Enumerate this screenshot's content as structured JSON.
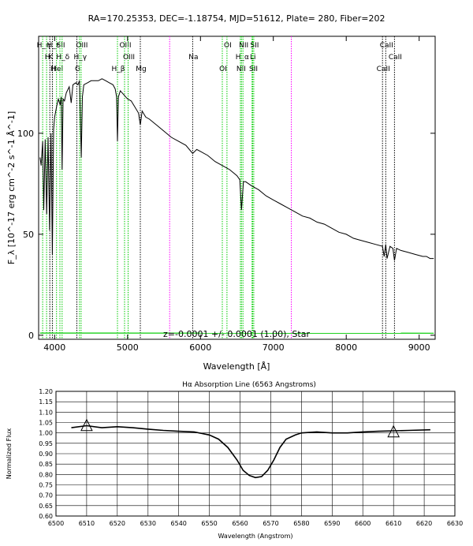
{
  "chart_data": [
    {
      "type": "line",
      "title": "RA=170.25353, DEC=-1.18754, MJD=51612, Plate= 280, Fiber=202",
      "xlabel": "Wavelength [Å]",
      "ylabel": "F_λ [10^-17 erg cm^-2 s^-1 Å^-1]",
      "xlim": [
        3780,
        9220
      ],
      "ylim": [
        -2,
        148
      ],
      "x_ticks": [
        4000,
        5000,
        6000,
        7000,
        8000,
        9000
      ],
      "x_tick_labels": [
        "4000",
        "5000",
        "6000",
        "7000",
        "8000",
        "9000"
      ],
      "y_ticks": [
        0,
        50,
        100
      ],
      "y_tick_labels": [
        "0",
        "50",
        "100"
      ],
      "annotation": "z=-0.0001 +/- 0.0001 (1.00), Star",
      "series": [
        {
          "color": "#000000",
          "x": [
            3800,
            3815,
            3835,
            3850,
            3870,
            3890,
            3910,
            3930,
            3950,
            3968,
            3985,
            4000,
            4025,
            4050,
            4075,
            4090,
            4102,
            4115,
            4135,
            4160,
            4200,
            4227,
            4250,
            4290,
            4320,
            4340,
            4350,
            4365,
            4380,
            4400,
            4450,
            4500,
            4550,
            4600,
            4650,
            4700,
            4750,
            4800,
            4830,
            4850,
            4861,
            4875,
            4900,
            4950,
            5000,
            5050,
            5100,
            5150,
            5175,
            5200,
            5250,
            5300,
            5400,
            5500,
            5600,
            5700,
            5800,
            5893,
            5950,
            6000,
            6100,
            6200,
            6300,
            6400,
            6500,
            6540,
            6563,
            6590,
            6620,
            6700,
            6800,
            6900,
            7000,
            7100,
            7200,
            7300,
            7400,
            7500,
            7600,
            7700,
            7800,
            7900,
            8000,
            8100,
            8200,
            8300,
            8400,
            8498,
            8520,
            8542,
            8560,
            8600,
            8640,
            8662,
            8690,
            8750,
            8850,
            8950,
            9050,
            9100,
            9150,
            9200
          ],
          "values": [
            88,
            84,
            96,
            62,
            97,
            60,
            98,
            52,
            100,
            40,
            102,
            108,
            113,
            117,
            114,
            118,
            82,
            117,
            116,
            120,
            123,
            115,
            124,
            125,
            124,
            126,
            112,
            88,
            118,
            124,
            125,
            126,
            126,
            126,
            127,
            126,
            125,
            124,
            122,
            118,
            96,
            118,
            121,
            119,
            117,
            116,
            113,
            110,
            104,
            111,
            108,
            107,
            104,
            101,
            98,
            96,
            94,
            90,
            92,
            91,
            89,
            86,
            84,
            82,
            79,
            77,
            62,
            76,
            76,
            74,
            72,
            69,
            67,
            65,
            63,
            61,
            59,
            58,
            56,
            55,
            53,
            51,
            50,
            48,
            47,
            46,
            45,
            44,
            39,
            45,
            38,
            44,
            43,
            37,
            43,
            42,
            41,
            40,
            39,
            39,
            38,
            38
          ]
        },
        {
          "color": "#00cc00",
          "x": [
            3800,
            9200
          ],
          "values": [
            1.1,
            1.0
          ]
        }
      ],
      "line_markers": [
        {
          "label": "H_ε",
          "x": 3970,
          "color": "#00cc00",
          "style": "dotted"
        },
        {
          "label": "K",
          "x": 3934,
          "color": "#000000",
          "style": "dotted"
        },
        {
          "label": "H",
          "x": 3968,
          "color": "#000000",
          "style": "dotted"
        },
        {
          "label": "H_η",
          "x": 3835,
          "color": "#00cc00",
          "style": "dotted"
        },
        {
          "label": "H",
          "x": 3889,
          "color": "#00cc00",
          "style": "dotted"
        },
        {
          "label": "HeI",
          "x": 4026,
          "color": "#00cc00",
          "style": "dotted"
        },
        {
          "label": "SII",
          "x": 4072,
          "color": "#00cc00",
          "style": "dotted"
        },
        {
          "label": "H_δ",
          "x": 4102,
          "color": "#00cc00",
          "style": "dotted"
        },
        {
          "label": "G",
          "x": 4305,
          "color": "#000000",
          "style": "dotted"
        },
        {
          "label": "OIII",
          "x": 4363,
          "color": "#00cc00",
          "style": "dotted"
        },
        {
          "label": "H_γ",
          "x": 4340,
          "color": "#00cc00",
          "style": "dotted"
        },
        {
          "label": "H_β",
          "x": 4861,
          "color": "#00cc00",
          "style": "dotted"
        },
        {
          "label": "OIII",
          "x": 4959,
          "color": "#00cc00",
          "style": "dotted"
        },
        {
          "label": "OIII",
          "x": 5007,
          "color": "#00cc00",
          "style": "dotted"
        },
        {
          "label": "Mg",
          "x": 5175,
          "color": "#000000",
          "style": "dotted"
        },
        {
          "label": "",
          "x": 5577,
          "color": "#ff00ff",
          "style": "dotted"
        },
        {
          "label": "Na",
          "x": 5893,
          "color": "#000000",
          "style": "dotted"
        },
        {
          "label": "OI",
          "x": 6300,
          "color": "#00cc00",
          "style": "dotted"
        },
        {
          "label": "OI",
          "x": 6364,
          "color": "#00cc00",
          "style": "dotted"
        },
        {
          "label": "H_α",
          "x": 6563,
          "color": "#00cc00",
          "style": "dotted"
        },
        {
          "label": "NII",
          "x": 6548,
          "color": "#00cc00",
          "style": "dotted"
        },
        {
          "label": "NII",
          "x": 6583,
          "color": "#00cc00",
          "style": "dotted"
        },
        {
          "label": "Li",
          "x": 6708,
          "color": "#00cc00",
          "style": "dotted"
        },
        {
          "label": "SII",
          "x": 6716,
          "color": "#00cc00",
          "style": "dotted"
        },
        {
          "label": "SII",
          "x": 6731,
          "color": "#00cc00",
          "style": "dotted"
        },
        {
          "label": "",
          "x": 7246,
          "color": "#ff00ff",
          "style": "dotted"
        },
        {
          "label": "CaII",
          "x": 8498,
          "color": "#000000",
          "style": "dotted"
        },
        {
          "label": "CaII",
          "x": 8542,
          "color": "#000000",
          "style": "dotted"
        },
        {
          "label": "CaII",
          "x": 8662,
          "color": "#000000",
          "style": "dotted"
        }
      ]
    },
    {
      "type": "line",
      "title": "Hα Absorption Line (6563 Angstroms)",
      "xlabel": "Wavelength (Angstrom)",
      "ylabel": "Normalized Flux",
      "xlim": [
        6500,
        6630
      ],
      "ylim": [
        0.6,
        1.2
      ],
      "grid": true,
      "x_ticks": [
        6500,
        6510,
        6520,
        6530,
        6540,
        6550,
        6560,
        6570,
        6580,
        6590,
        6600,
        6610,
        6620,
        6630
      ],
      "x_tick_labels": [
        "6500",
        "6510",
        "6520",
        "6530",
        "6540",
        "6550",
        "6560",
        "6570",
        "6580",
        "6590",
        "6600",
        "6610",
        "6620",
        "6630"
      ],
      "y_ticks": [
        0.6,
        0.65,
        0.7,
        0.75,
        0.8,
        0.85,
        0.9,
        0.95,
        1.0,
        1.05,
        1.1,
        1.15,
        1.2
      ],
      "y_tick_labels": [
        "0.60",
        "0.65",
        "0.70",
        "0.75",
        "0.80",
        "0.85",
        "0.90",
        "0.95",
        "1.00",
        "1.05",
        "1.10",
        "1.15",
        "1.20"
      ],
      "series": [
        {
          "color": "#000000",
          "x": [
            6505,
            6510,
            6515,
            6520,
            6525,
            6530,
            6535,
            6540,
            6545,
            6550,
            6553,
            6556,
            6559,
            6561,
            6563,
            6565,
            6567,
            6569,
            6571,
            6573,
            6575,
            6578,
            6580,
            6585,
            6590,
            6595,
            6600,
            6605,
            6610,
            6615,
            6622
          ],
          "values": [
            1.025,
            1.035,
            1.025,
            1.03,
            1.025,
            1.018,
            1.012,
            1.008,
            1.005,
            0.99,
            0.97,
            0.93,
            0.87,
            0.82,
            0.795,
            0.785,
            0.79,
            0.82,
            0.87,
            0.93,
            0.97,
            0.99,
            1.0,
            1.005,
            1.0,
            1.0,
            1.005,
            1.008,
            1.01,
            1.012,
            1.015
          ]
        }
      ],
      "markers": [
        {
          "shape": "triangle",
          "x": 6510,
          "y": 1.03
        },
        {
          "shape": "triangle",
          "x": 6610,
          "y": 1.0
        }
      ]
    }
  ]
}
